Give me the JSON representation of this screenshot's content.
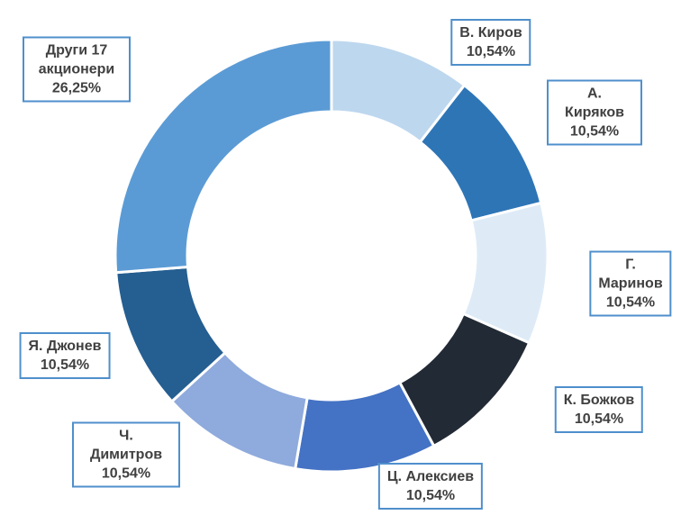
{
  "chart_data": {
    "type": "donut",
    "categories": [
      "В. Киров",
      "А. Киряков",
      "Г. Маринов",
      "К. Божков",
      "Ц. Алексиев",
      "Ч. Димитров",
      "Я. Джонев",
      "Други 17 акционери"
    ],
    "values": [
      10.54,
      10.54,
      10.54,
      10.54,
      10.54,
      10.54,
      10.54,
      26.25
    ],
    "value_labels": [
      "10,54%",
      "10,54%",
      "10,54%",
      "10,54%",
      "10,54%",
      "10,54%",
      "10,54%",
      "26,25%"
    ],
    "colors": [
      "#bdd7ee",
      "#2e75b6",
      "#deebf7",
      "#222a35",
      "#4472c4",
      "#8faadc",
      "#255e91",
      "#5b9bd5"
    ]
  }
}
